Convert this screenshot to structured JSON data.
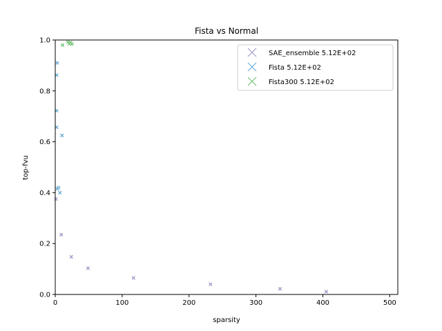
{
  "chart_data": {
    "type": "scatter",
    "title": "Fista vs Normal",
    "xlabel": "sparsity",
    "ylabel": "top-fvu",
    "xlim": [
      0,
      512
    ],
    "ylim": [
      0,
      1.0
    ],
    "xticks": [
      0,
      100,
      200,
      300,
      400,
      500
    ],
    "xtick_labels": [
      "0",
      "100",
      "200",
      "300",
      "400",
      "500"
    ],
    "yticks": [
      0.0,
      0.2,
      0.4,
      0.6,
      0.8,
      1.0
    ],
    "ytick_labels": [
      "0.0",
      "0.2",
      "0.4",
      "0.6",
      "0.8",
      "1.0"
    ],
    "grid": false,
    "legend_position": "top-right",
    "marker": "x",
    "series": [
      {
        "name": "SAE_ensemble 5.12E+02",
        "color": "#9f9bc8",
        "points": [
          {
            "x": 1,
            "y": 0.375
          },
          {
            "x": 9,
            "y": 0.235
          },
          {
            "x": 24,
            "y": 0.148
          },
          {
            "x": 49,
            "y": 0.103
          },
          {
            "x": 117,
            "y": 0.065
          },
          {
            "x": 232,
            "y": 0.04
          },
          {
            "x": 336,
            "y": 0.022
          },
          {
            "x": 405,
            "y": 0.011
          }
        ]
      },
      {
        "name": "Fista 5.12E+02",
        "color": "#6baed6",
        "points": [
          {
            "x": 3,
            "y": 0.91
          },
          {
            "x": 2,
            "y": 0.862
          },
          {
            "x": 2,
            "y": 0.722
          },
          {
            "x": 2,
            "y": 0.657
          },
          {
            "x": 10,
            "y": 0.625
          },
          {
            "x": 5,
            "y": 0.42
          },
          {
            "x": 3,
            "y": 0.415
          },
          {
            "x": 7,
            "y": 0.4
          }
        ]
      },
      {
        "name": "Fista300 5.12E+02",
        "color": "#74c476",
        "points": [
          {
            "x": 11,
            "y": 0.98
          },
          {
            "x": 19,
            "y": 0.992
          },
          {
            "x": 21,
            "y": 0.985
          },
          {
            "x": 23,
            "y": 0.99
          },
          {
            "x": 25,
            "y": 0.984
          }
        ]
      }
    ]
  }
}
